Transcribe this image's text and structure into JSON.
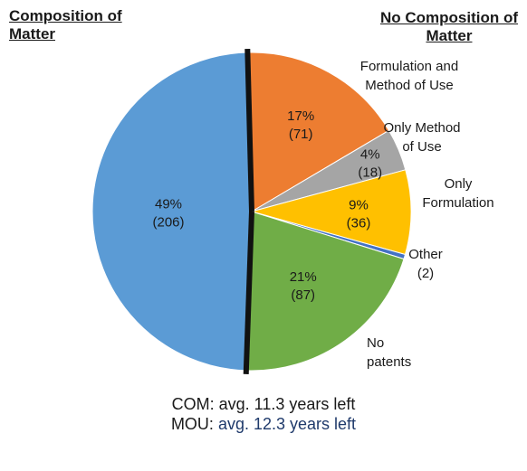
{
  "headings": {
    "left": [
      "Composition of",
      "Matter"
    ],
    "right": [
      "No Composition of",
      "Matter"
    ]
  },
  "chart_data": {
    "type": "pie",
    "categories": [
      "Formulation and Method of Use",
      "Only Method of Use",
      "Only Formulation",
      "Other",
      "No patents",
      "Composition of Matter"
    ],
    "values": [
      71,
      18,
      36,
      2,
      87,
      206
    ],
    "percent_labels": [
      "17%",
      "4%",
      "9%",
      "",
      "21%",
      "49%"
    ],
    "count_labels": [
      "(71)",
      "(18)",
      "(36)",
      "(2)",
      "(87)",
      "(206)"
    ],
    "outside_labels": [
      [
        "Formulation and",
        "Method of Use"
      ],
      [
        "Only Method",
        "of Use"
      ],
      [
        "Only",
        "Formulation"
      ],
      [
        "Other",
        "(2)"
      ],
      [
        "No",
        "patents"
      ],
      []
    ],
    "colors": [
      "#ed7d31",
      "#a5a5a5",
      "#ffc000",
      "#4472c4",
      "#70ad47",
      "#5b9bd5"
    ],
    "divider_color": "#111111"
  },
  "footer": {
    "com_prefix": "COM:",
    "com_value": "avg. 11.3 years left",
    "mou_prefix": "MOU:",
    "mou_value": "avg. 12.3 years left"
  }
}
